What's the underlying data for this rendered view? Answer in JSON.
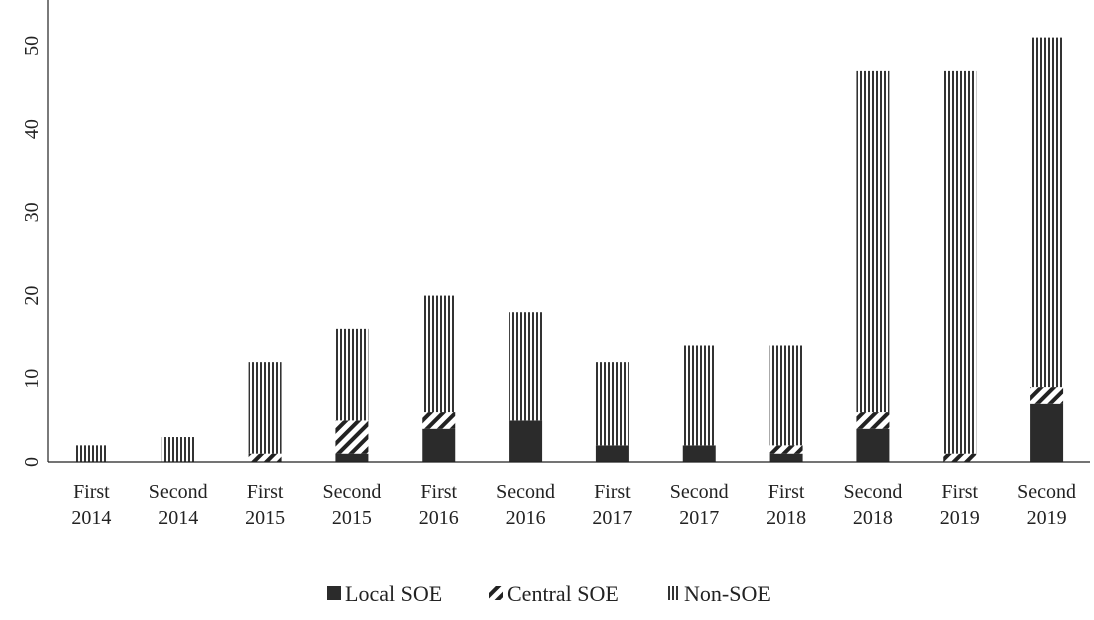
{
  "chart_data": {
    "type": "bar",
    "stacked": true,
    "categories": [
      [
        "First",
        "2014"
      ],
      [
        "Second",
        "2014"
      ],
      [
        "First",
        "2015"
      ],
      [
        "Second",
        "2015"
      ],
      [
        "First",
        "2016"
      ],
      [
        "Second",
        "2016"
      ],
      [
        "First",
        "2017"
      ],
      [
        "Second",
        "2017"
      ],
      [
        "First",
        "2018"
      ],
      [
        "Second",
        "2018"
      ],
      [
        "First",
        "2019"
      ],
      [
        "Second",
        "2019"
      ]
    ],
    "series": [
      {
        "name": "Local SOE",
        "pattern": "solid",
        "color": "#2b2b2b",
        "values": [
          0,
          0,
          0,
          1,
          4,
          5,
          2,
          2,
          1,
          4,
          0,
          7
        ]
      },
      {
        "name": "Central SOE",
        "pattern": "diagonal",
        "color": "#222222",
        "values": [
          0,
          0,
          1,
          4,
          2,
          0,
          0,
          0,
          1,
          2,
          1,
          2
        ]
      },
      {
        "name": "Non-SOE",
        "pattern": "vertical",
        "color": "#333333",
        "values": [
          2,
          3,
          11,
          11,
          14,
          13,
          10,
          12,
          12,
          41,
          46,
          42
        ]
      }
    ],
    "yticks": [
      0,
      10,
      20,
      30,
      40,
      50
    ],
    "ylim": [
      0,
      56
    ],
    "title": "",
    "xlabel": "",
    "ylabel": "",
    "grid": false,
    "legend_position": "bottom"
  }
}
